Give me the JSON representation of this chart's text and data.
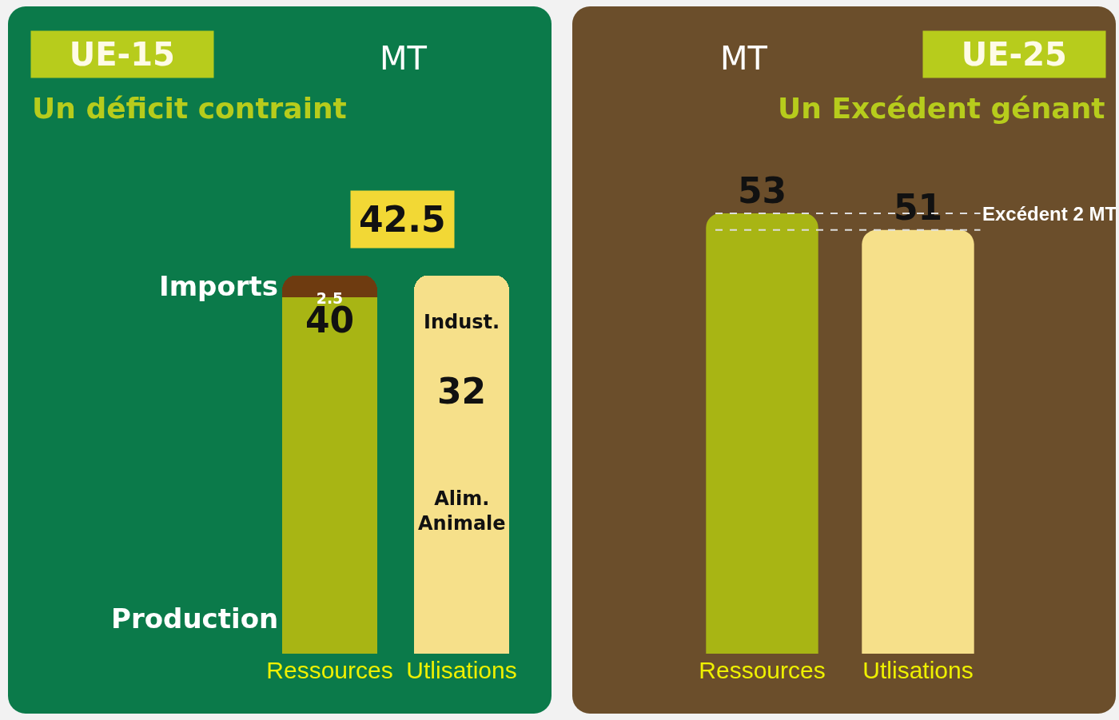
{
  "chart_data": [
    {
      "type": "bar",
      "title": "UE-15",
      "subtitle": "Un déficit contraint",
      "ylabel": "MT",
      "categories": [
        "Ressources",
        "Utlisations"
      ],
      "stacked": true,
      "tick_labels": "x",
      "series": [
        {
          "name": "Production",
          "color": "#a8b514",
          "values": [
            40,
            null
          ],
          "value_labels": [
            "40",
            null
          ]
        },
        {
          "name": "Imports",
          "color": "#6e3b10",
          "values": [
            2.5,
            null
          ],
          "value_labels": [
            "2.5",
            null
          ]
        },
        {
          "name": "Alim.\nAnimale",
          "color": "#f6e08a",
          "values": [
            null,
            32
          ],
          "value_labels": [
            null,
            "32"
          ]
        },
        {
          "name": "Indust.",
          "color": "#f6e08a",
          "values": [
            null,
            10.5
          ]
        }
      ],
      "totals": [
        "42.5",
        null
      ]
    },
    {
      "type": "bar",
      "title": "UE-25",
      "subtitle": "Un Excédent génant",
      "ylabel": "MT",
      "categories": [
        "Ressources",
        "Utlisations"
      ],
      "values": [
        53,
        51
      ],
      "colors": [
        "#a8b514",
        "#f6e08a"
      ],
      "data_labels": true,
      "tick_labels": "x",
      "ref_lines": [
        {
          "axis": "y",
          "value": 53,
          "line_style": "dashed",
          "color": "#dddddd",
          "label": "Excédent 2 MT"
        },
        {
          "axis": "y",
          "value": 51,
          "line_style": "dashed",
          "color": "#dddddd"
        }
      ]
    }
  ]
}
